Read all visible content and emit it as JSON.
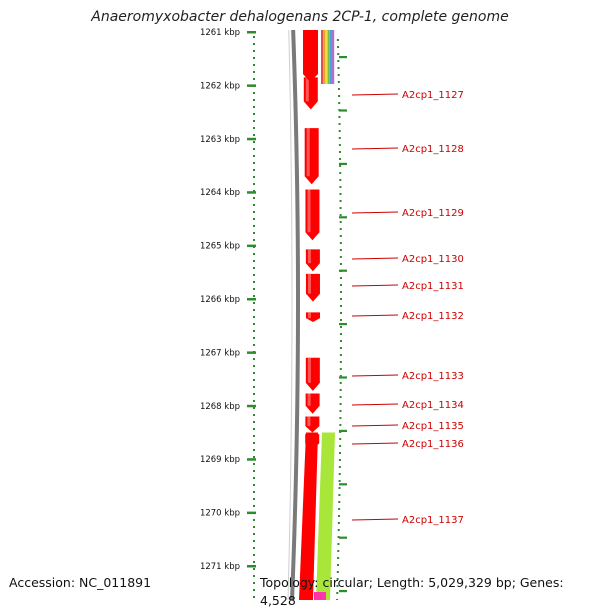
{
  "title": "Anaeromyxobacter dehalogenans 2CP-1, complete genome",
  "accession": "Accession: NC_011891",
  "topology": "Topology: circular; Length: 5,029,329 bp; Genes: 4,528",
  "ticks": [
    {
      "label": "1261 kbp",
      "kbp": 1261
    },
    {
      "label": "1262 kbp",
      "kbp": 1262
    },
    {
      "label": "1263 kbp",
      "kbp": 1263
    },
    {
      "label": "1264 kbp",
      "kbp": 1264
    },
    {
      "label": "1265 kbp",
      "kbp": 1265
    },
    {
      "label": "1266 kbp",
      "kbp": 1266
    },
    {
      "label": "1267 kbp",
      "kbp": 1267
    },
    {
      "label": "1268 kbp",
      "kbp": 1268
    },
    {
      "label": "1269 kbp",
      "kbp": 1269
    },
    {
      "label": "1270 kbp",
      "kbp": 1270
    },
    {
      "label": "1271 kbp",
      "kbp": 1271
    }
  ],
  "genes": [
    {
      "label": "A2cp1_1127",
      "start_kbp": 1261.85,
      "end_kbp": 1262.45
    },
    {
      "label": "A2cp1_1128",
      "start_kbp": 1262.8,
      "end_kbp": 1263.85
    },
    {
      "label": "A2cp1_1129",
      "start_kbp": 1263.95,
      "end_kbp": 1264.9
    },
    {
      "label": "A2cp1_1130",
      "start_kbp": 1265.07,
      "end_kbp": 1265.48
    },
    {
      "label": "A2cp1_1131",
      "start_kbp": 1265.53,
      "end_kbp": 1266.05
    },
    {
      "label": "A2cp1_1132",
      "start_kbp": 1266.25,
      "end_kbp": 1266.43
    },
    {
      "label": "A2cp1_1133",
      "start_kbp": 1267.1,
      "end_kbp": 1267.72
    },
    {
      "label": "A2cp1_1134",
      "start_kbp": 1267.77,
      "end_kbp": 1268.15
    },
    {
      "label": "A2cp1_1135",
      "start_kbp": 1268.2,
      "end_kbp": 1268.5
    },
    {
      "label": "A2cp1_1136",
      "start_kbp": 1268.53,
      "end_kbp": 1268.82
    },
    {
      "label": "A2cp1_1137",
      "start_kbp": 1268.5,
      "end_kbp": 1271.6
    }
  ],
  "colors": {
    "cds": "#ff0000",
    "cds_highlight": "#ff7a7a",
    "label": "#cc0000",
    "tick": "#2e8b2e",
    "backbone": "#7a7a7a",
    "rna_band": "#a8e63a",
    "top_bands": [
      "#e05050",
      "#f0a030",
      "#f0e040",
      "#70c050",
      "#50a0e0",
      "#b070d0"
    ],
    "bottom_magenta": "#ff33aa"
  }
}
